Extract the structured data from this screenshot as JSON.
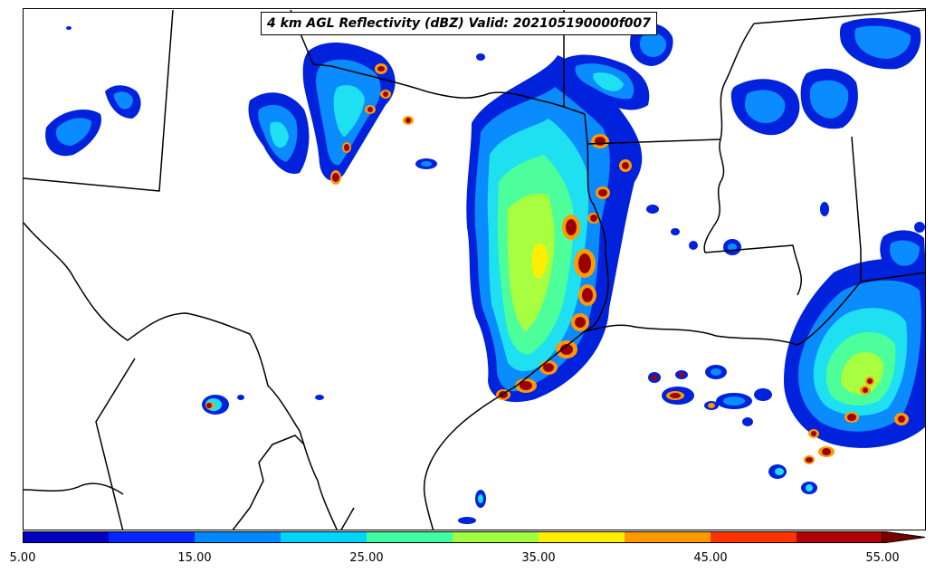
{
  "title": "4 km AGL Reflectivity (dBZ) Valid: 202105190000f007",
  "colorbar": {
    "min": 5,
    "max": 55,
    "extend": "max",
    "tick_labels": [
      "5.00",
      "15.00",
      "25.00",
      "35.00",
      "45.00",
      "55.00"
    ],
    "colors": [
      "#0000c0",
      "#0026ff",
      "#0088ff",
      "#00d4ff",
      "#40ffa0",
      "#a0ff40",
      "#ffee00",
      "#ff9900",
      "#ff3300",
      "#b00000",
      "#7a0000"
    ]
  },
  "reflectivity_levels": {
    "base": "#0022dd",
    "light": "#0a8cff",
    "cyan": "#1ee0f0",
    "green": "#4cff9a",
    "lime": "#a8ff40",
    "yellow": "#ffee00",
    "orange": "#ff9900",
    "red": "#ff2a00",
    "darkred": "#9a0000"
  },
  "map": {
    "boundary_color": "#000000",
    "background": "#ffffff"
  }
}
